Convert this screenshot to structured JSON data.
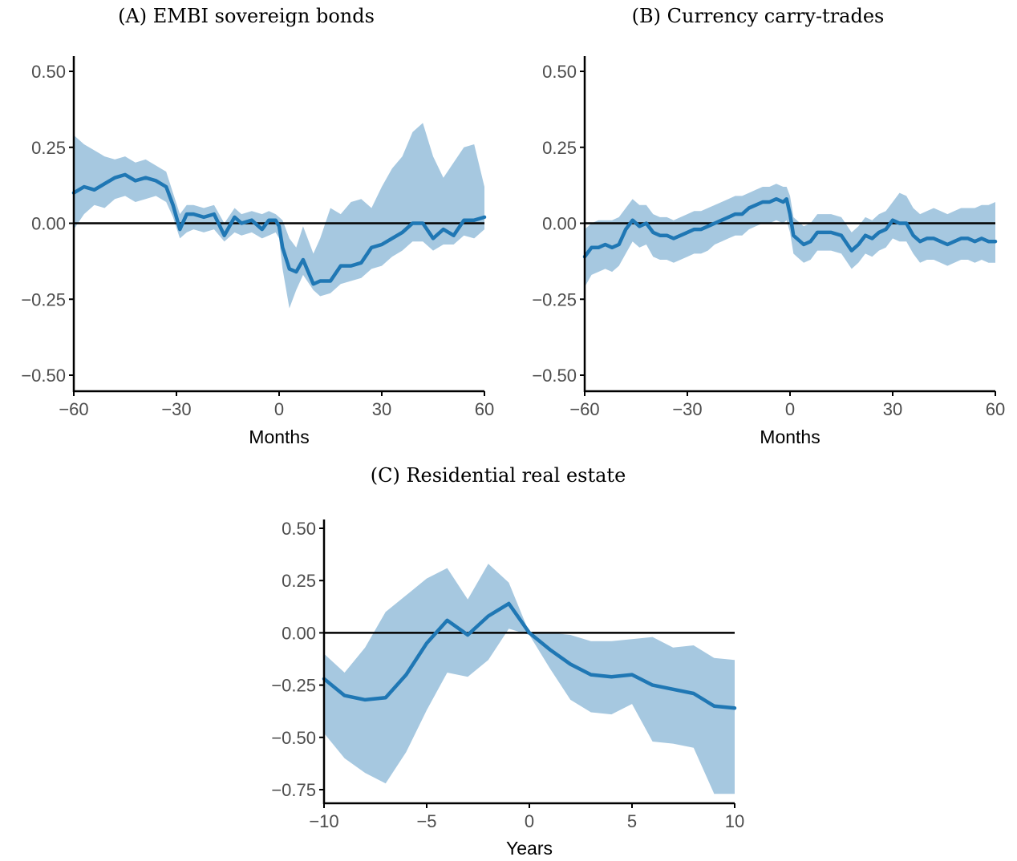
{
  "colors": {
    "line": "#1f77b4",
    "band": "#a6c8e0",
    "axis": "#000000",
    "tick_text": "#4d4d4d"
  },
  "chart_data": [
    {
      "type": "line",
      "title": "(A) EMBI sovereign bonds",
      "xlabel": "Months",
      "ylabel": "",
      "xlim": [
        -60,
        60
      ],
      "ylim": [
        -0.55,
        0.55
      ],
      "xticks": [
        -60,
        -30,
        0,
        30,
        60
      ],
      "xtick_labels": [
        "−60",
        "−30",
        "0",
        "30",
        "60"
      ],
      "yticks": [
        -0.5,
        -0.25,
        0,
        0.25,
        0.5
      ],
      "ytick_labels": [
        "−0.50",
        "−0.25",
        "0.00",
        "0.25",
        "0.50"
      ],
      "reference_line": 0,
      "series": [
        {
          "x": [
            -60,
            -57,
            -54,
            -51,
            -48,
            -45,
            -42,
            -39,
            -36,
            -33,
            -31,
            -29,
            -27,
            -25,
            -22,
            -19,
            -16,
            -13,
            -11,
            -8,
            -5,
            -3,
            -1,
            0,
            1,
            3,
            5,
            7,
            10,
            12,
            15,
            18,
            21,
            24,
            27,
            30,
            33,
            36,
            39,
            42,
            45,
            48,
            51,
            54,
            57,
            60
          ],
          "y": [
            0.1,
            0.12,
            0.11,
            0.13,
            0.15,
            0.16,
            0.14,
            0.15,
            0.14,
            0.12,
            0.06,
            -0.02,
            0.03,
            0.03,
            0.02,
            0.03,
            -0.04,
            0.02,
            0.0,
            0.01,
            -0.02,
            0.01,
            0.01,
            -0.01,
            -0.08,
            -0.15,
            -0.16,
            -0.12,
            -0.2,
            -0.19,
            -0.19,
            -0.14,
            -0.14,
            -0.13,
            -0.08,
            -0.07,
            -0.05,
            -0.03,
            0.0,
            0.0,
            -0.05,
            -0.02,
            -0.04,
            0.01,
            0.01,
            0.02
          ],
          "lower": [
            -0.02,
            0.03,
            0.06,
            0.05,
            0.08,
            0.09,
            0.07,
            0.08,
            0.09,
            0.07,
            0.02,
            -0.05,
            -0.03,
            -0.02,
            -0.03,
            -0.02,
            -0.06,
            -0.03,
            -0.04,
            -0.03,
            -0.05,
            -0.04,
            -0.03,
            -0.05,
            -0.15,
            -0.28,
            -0.22,
            -0.17,
            -0.22,
            -0.24,
            -0.23,
            -0.2,
            -0.19,
            -0.18,
            -0.15,
            -0.14,
            -0.11,
            -0.09,
            -0.06,
            -0.06,
            -0.09,
            -0.07,
            -0.07,
            -0.04,
            -0.05,
            -0.02
          ],
          "upper": [
            0.29,
            0.26,
            0.24,
            0.22,
            0.21,
            0.22,
            0.2,
            0.21,
            0.19,
            0.17,
            0.1,
            0.03,
            0.06,
            0.06,
            0.05,
            0.06,
            0.0,
            0.05,
            0.03,
            0.04,
            0.03,
            0.04,
            0.03,
            0.02,
            0.01,
            -0.05,
            -0.08,
            -0.01,
            -0.1,
            -0.05,
            0.05,
            0.03,
            0.07,
            0.08,
            0.05,
            0.12,
            0.18,
            0.22,
            0.3,
            0.33,
            0.22,
            0.15,
            0.2,
            0.25,
            0.26,
            0.12
          ]
        }
      ]
    },
    {
      "type": "line",
      "title": "(B) Currency carry-trades",
      "xlabel": "Months",
      "ylabel": "",
      "xlim": [
        -60,
        60
      ],
      "ylim": [
        -0.55,
        0.55
      ],
      "xticks": [
        -60,
        -30,
        0,
        30,
        60
      ],
      "xtick_labels": [
        "−60",
        "−30",
        "0",
        "30",
        "60"
      ],
      "yticks": [
        -0.5,
        -0.25,
        0,
        0.25,
        0.5
      ],
      "ytick_labels": [
        "−0.50",
        "−0.25",
        "0.00",
        "0.25",
        "0.50"
      ],
      "reference_line": 0,
      "series": [
        {
          "x": [
            -60,
            -58,
            -56,
            -54,
            -52,
            -50,
            -48,
            -46,
            -44,
            -42,
            -40,
            -38,
            -36,
            -34,
            -32,
            -30,
            -28,
            -26,
            -24,
            -22,
            -20,
            -18,
            -16,
            -14,
            -12,
            -10,
            -8,
            -6,
            -4,
            -2,
            -1,
            0,
            1,
            2,
            4,
            6,
            8,
            10,
            12,
            15,
            18,
            20,
            22,
            24,
            26,
            28,
            30,
            32,
            34,
            36,
            38,
            40,
            42,
            44,
            46,
            48,
            50,
            52,
            54,
            56,
            58,
            60
          ],
          "y": [
            -0.11,
            -0.08,
            -0.08,
            -0.07,
            -0.08,
            -0.07,
            -0.02,
            0.01,
            -0.01,
            0.0,
            -0.03,
            -0.04,
            -0.04,
            -0.05,
            -0.04,
            -0.03,
            -0.02,
            -0.02,
            -0.01,
            0.0,
            0.01,
            0.02,
            0.03,
            0.03,
            0.05,
            0.06,
            0.07,
            0.07,
            0.08,
            0.07,
            0.08,
            0.03,
            -0.04,
            -0.05,
            -0.07,
            -0.06,
            -0.03,
            -0.03,
            -0.03,
            -0.04,
            -0.09,
            -0.07,
            -0.04,
            -0.05,
            -0.03,
            -0.02,
            0.01,
            0.0,
            0.0,
            -0.04,
            -0.06,
            -0.05,
            -0.05,
            -0.06,
            -0.07,
            -0.06,
            -0.05,
            -0.05,
            -0.06,
            -0.05,
            -0.06,
            -0.06
          ],
          "lower": [
            -0.21,
            -0.17,
            -0.16,
            -0.15,
            -0.16,
            -0.14,
            -0.1,
            -0.06,
            -0.08,
            -0.07,
            -0.11,
            -0.12,
            -0.12,
            -0.13,
            -0.12,
            -0.11,
            -0.1,
            -0.1,
            -0.09,
            -0.07,
            -0.06,
            -0.05,
            -0.04,
            -0.04,
            -0.02,
            -0.01,
            0.0,
            0.0,
            0.01,
            0.0,
            0.01,
            -0.03,
            -0.1,
            -0.11,
            -0.13,
            -0.12,
            -0.09,
            -0.09,
            -0.09,
            -0.1,
            -0.15,
            -0.13,
            -0.1,
            -0.11,
            -0.09,
            -0.08,
            -0.05,
            -0.06,
            -0.06,
            -0.1,
            -0.13,
            -0.12,
            -0.12,
            -0.13,
            -0.14,
            -0.13,
            -0.12,
            -0.12,
            -0.13,
            -0.12,
            -0.13,
            -0.13
          ],
          "upper": [
            -0.02,
            0.0,
            0.01,
            0.01,
            0.01,
            0.02,
            0.05,
            0.08,
            0.06,
            0.06,
            0.03,
            0.02,
            0.02,
            0.01,
            0.02,
            0.03,
            0.04,
            0.04,
            0.05,
            0.06,
            0.07,
            0.08,
            0.09,
            0.09,
            0.1,
            0.11,
            0.12,
            0.12,
            0.13,
            0.12,
            0.12,
            0.09,
            0.02,
            0.01,
            -0.01,
            0.0,
            0.03,
            0.03,
            0.03,
            0.02,
            -0.03,
            -0.01,
            0.02,
            0.01,
            0.03,
            0.04,
            0.07,
            0.1,
            0.09,
            0.05,
            0.03,
            0.04,
            0.05,
            0.04,
            0.03,
            0.04,
            0.05,
            0.05,
            0.05,
            0.06,
            0.06,
            0.07
          ]
        }
      ]
    },
    {
      "type": "line",
      "title": "(C) Residential real estate",
      "xlabel": "Years",
      "ylabel": "",
      "xlim": [
        -10,
        10
      ],
      "ylim": [
        -0.8,
        0.55
      ],
      "xticks": [
        -10,
        -5,
        0,
        5,
        10
      ],
      "xtick_labels": [
        "−10",
        "−5",
        "0",
        "5",
        "10"
      ],
      "yticks": [
        -0.75,
        -0.5,
        -0.25,
        0,
        0.25,
        0.5
      ],
      "ytick_labels": [
        "−0.75",
        "−0.50",
        "−0.25",
        "0.00",
        "0.25",
        "0.50"
      ],
      "reference_line": 0,
      "series": [
        {
          "x": [
            -10,
            -9,
            -8,
            -7,
            -6,
            -5,
            -4,
            -3,
            -2,
            -1,
            0,
            1,
            2,
            3,
            4,
            5,
            6,
            7,
            8,
            9,
            10
          ],
          "y": [
            -0.22,
            -0.3,
            -0.32,
            -0.31,
            -0.2,
            -0.05,
            0.06,
            -0.01,
            0.08,
            0.14,
            0.0,
            -0.08,
            -0.15,
            -0.2,
            -0.21,
            -0.2,
            -0.25,
            -0.27,
            -0.29,
            -0.35,
            -0.36
          ],
          "lower": [
            -0.48,
            -0.6,
            -0.67,
            -0.72,
            -0.57,
            -0.37,
            -0.19,
            -0.21,
            -0.13,
            0.02,
            -0.01,
            -0.17,
            -0.32,
            -0.38,
            -0.39,
            -0.34,
            -0.52,
            -0.53,
            -0.55,
            -0.77,
            -0.77
          ],
          "upper": [
            -0.1,
            -0.19,
            -0.07,
            0.1,
            0.18,
            0.26,
            0.31,
            0.16,
            0.33,
            0.24,
            0.0,
            0.0,
            -0.01,
            -0.04,
            -0.04,
            -0.03,
            -0.02,
            -0.07,
            -0.06,
            -0.12,
            -0.13
          ]
        }
      ]
    }
  ]
}
